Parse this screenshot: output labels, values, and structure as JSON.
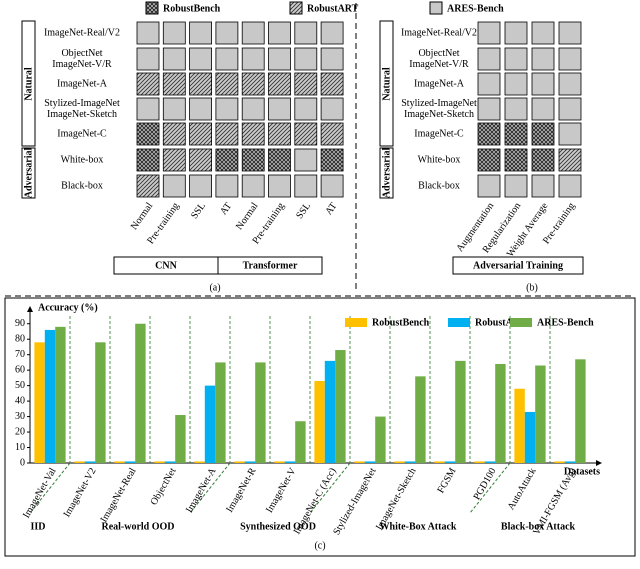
{
  "legend": [
    "RobustBench",
    "RobustART",
    "ARES-Bench"
  ],
  "panel_a": {
    "caption": "(a)",
    "side_labels": [
      "Natural",
      "Adversarial"
    ],
    "rows": [
      [
        "ImageNet-Real/V2"
      ],
      [
        "ObjectNet",
        "ImageNet-V/R"
      ],
      [
        "ImageNet-A"
      ],
      [
        "Stylized-ImageNet",
        "ImageNet-Sketch"
      ],
      [
        "ImageNet-C"
      ],
      [
        "White-box"
      ],
      [
        "Black-box"
      ]
    ],
    "columns": [
      "Normal",
      "Pre-training",
      "SSL",
      "AT",
      "Normal",
      "Pre-training",
      "SSL",
      "AT"
    ],
    "groups": [
      "CNN",
      "Transformer"
    ],
    "cells": [
      [
        2,
        2,
        2,
        2,
        2,
        2,
        2,
        2
      ],
      [
        2,
        2,
        2,
        2,
        2,
        2,
        2,
        2
      ],
      [
        1,
        1,
        1,
        1,
        1,
        1,
        1,
        1
      ],
      [
        2,
        2,
        2,
        2,
        2,
        2,
        2,
        2
      ],
      [
        0,
        1,
        1,
        1,
        1,
        1,
        1,
        1
      ],
      [
        0,
        1,
        1,
        0,
        0,
        0,
        2,
        0
      ],
      [
        1,
        2,
        2,
        2,
        2,
        2,
        2,
        2
      ]
    ]
  },
  "panel_b": {
    "caption": "(b)",
    "side_labels": [
      "Natural",
      "Adversarial"
    ],
    "rows": [
      [
        "ImageNet-Real/V2"
      ],
      [
        "ObjectNet",
        "ImageNet-V/R"
      ],
      [
        "ImageNet-A"
      ],
      [
        "Stylized-ImageNet",
        "ImageNet-Sketch"
      ],
      [
        "ImageNet-C"
      ],
      [
        "White-box"
      ],
      [
        "Black-box"
      ]
    ],
    "columns": [
      "Augmentation",
      "Regularization",
      "Weight Average",
      "Pre-training"
    ],
    "groups": [
      "Adversarial Training"
    ],
    "cells": [
      [
        2,
        2,
        2,
        2
      ],
      [
        2,
        2,
        2,
        2
      ],
      [
        2,
        2,
        2,
        2
      ],
      [
        2,
        2,
        2,
        2
      ],
      [
        0,
        0,
        0,
        2
      ],
      [
        0,
        0,
        0,
        1
      ],
      [
        2,
        2,
        2,
        2
      ]
    ]
  },
  "chart_data": {
    "type": "bar",
    "caption": "(c)",
    "y_label": "Accuracy (%)",
    "x_label": "Datasets",
    "categories": [
      "ImageNet-Val",
      "ImageNet-V2",
      "ImageNet-Real",
      "ObjectNet",
      "ImageNet-A",
      "ImageNet-R",
      "ImageNet-V",
      "ImageNet-C (Acc)",
      "Stylized-ImageNet",
      "ImageNet-Sketch",
      "FGSM",
      "PGD100",
      "AutoAttack",
      "VMI-FGSM (Avg)"
    ],
    "series": [
      {
        "name": "RobustBench",
        "color": "#ffc000",
        "values": [
          78,
          1,
          1,
          1,
          1,
          1,
          1,
          53,
          1,
          1,
          1,
          1,
          48,
          1
        ]
      },
      {
        "name": "RobustART",
        "color": "#00b0f0",
        "values": [
          86,
          1,
          1,
          1,
          50,
          1,
          1,
          66,
          1,
          1,
          1,
          1,
          33,
          1
        ]
      },
      {
        "name": "ARES-Bench",
        "color": "#70ad47",
        "values": [
          88,
          78,
          90,
          31,
          65,
          65,
          27,
          73,
          30,
          56,
          66,
          64,
          63,
          67
        ]
      }
    ],
    "groups": [
      {
        "label": "IID",
        "start": 0,
        "end": 0
      },
      {
        "label": "Real-world OOD",
        "start": 1,
        "end": 4
      },
      {
        "label": "Synthesized OOD",
        "start": 5,
        "end": 7
      },
      {
        "label": "White-Box Attack",
        "start": 8,
        "end": 11
      },
      {
        "label": "Black-box Attack",
        "start": 12,
        "end": 13
      }
    ],
    "ylim": [
      0,
      95
    ],
    "yticks": [
      0,
      10,
      20,
      30,
      40,
      50,
      60,
      70,
      80,
      90
    ]
  }
}
